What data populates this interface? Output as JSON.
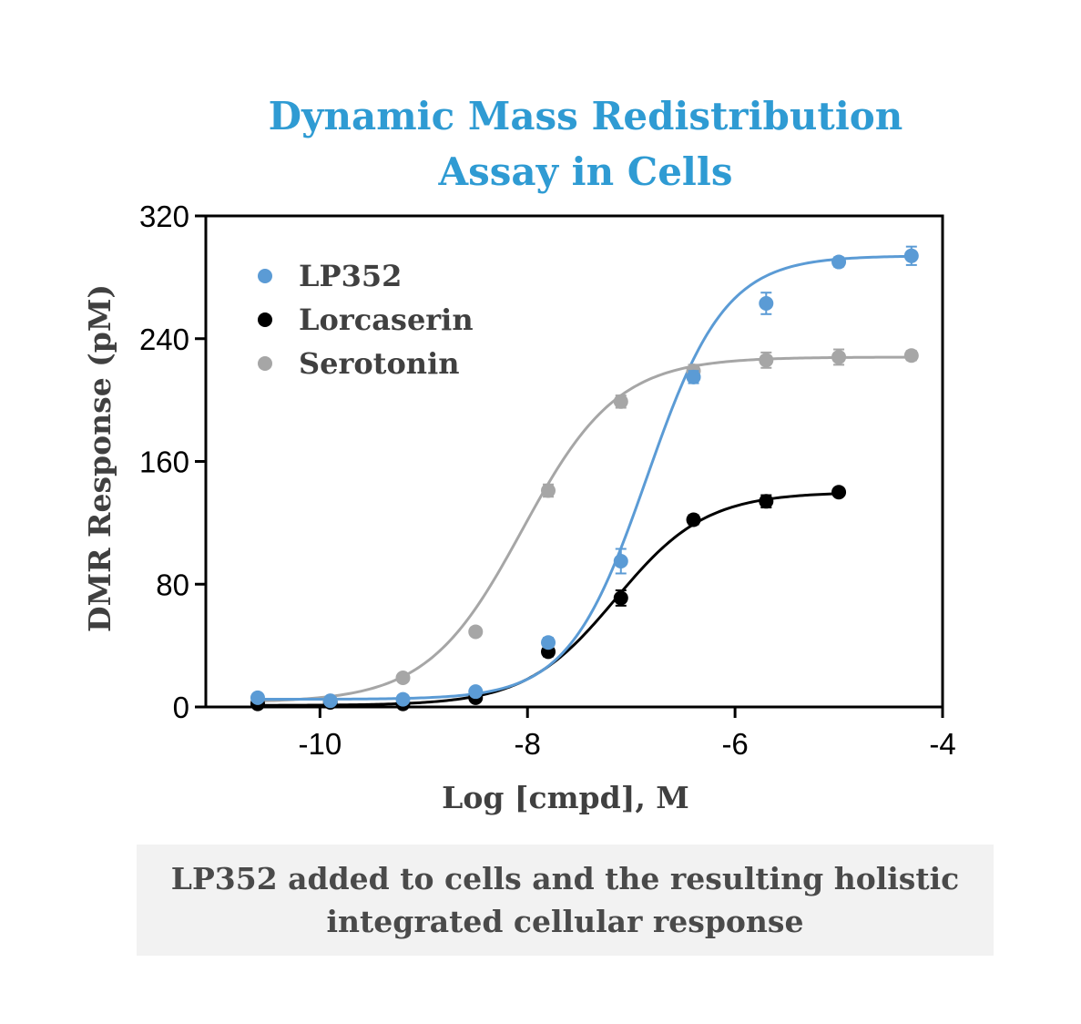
{
  "chart_data": {
    "type": "scatter",
    "title_lines": [
      "Dynamic Mass Redistribution",
      "Assay in Cells"
    ],
    "xlabel": "Log [cmpd], M",
    "ylabel": "DMR Response (pM)",
    "xlim": [
      -11.1,
      -4
    ],
    "ylim": [
      0,
      320
    ],
    "xticks": [
      -10,
      -8,
      -6,
      -4
    ],
    "xtick_labels": [
      "-10",
      "-8",
      "-6",
      "-4"
    ],
    "yticks": [
      0,
      80,
      160,
      240,
      320
    ],
    "ytick_labels": [
      "0",
      "80",
      "160",
      "240",
      "320"
    ],
    "grid": false,
    "legend_position": "top-left",
    "series": [
      {
        "name": "LP352",
        "color": "#5b9bd5",
        "x": [
          -10.6,
          -9.9,
          -9.2,
          -8.5,
          -7.8,
          -7.1,
          -6.4,
          -5.7,
          -5.0,
          -4.3
        ],
        "y": [
          6,
          4,
          5,
          10,
          42,
          95,
          215,
          263,
          290,
          294
        ],
        "err": [
          2,
          2,
          2,
          2,
          3,
          8,
          4,
          7,
          3,
          6
        ],
        "fit": {
          "bottom": 5,
          "top": 294,
          "logEC50": -6.85,
          "hill": 1.15
        }
      },
      {
        "name": "Lorcaserin",
        "color": "#000000",
        "x": [
          -10.6,
          -9.9,
          -9.2,
          -8.5,
          -7.8,
          -7.1,
          -6.4,
          -5.7,
          -5.0
        ],
        "y": [
          2,
          3,
          2,
          6,
          36,
          71,
          122,
          134,
          140
        ],
        "err": [
          1,
          1,
          1,
          2,
          3,
          5,
          3,
          4,
          2
        ],
        "fit": {
          "bottom": 1,
          "top": 140,
          "logEC50": -7.15,
          "hill": 1.0
        }
      },
      {
        "name": "Serotonin",
        "color": "#a6a6a6",
        "x": [
          -10.6,
          -9.9,
          -9.2,
          -8.5,
          -7.8,
          -7.1,
          -6.4,
          -5.7,
          -5.0,
          -4.3
        ],
        "y": [
          3,
          4,
          19,
          49,
          141,
          199,
          219,
          226,
          228,
          229
        ],
        "err": [
          1,
          1,
          2,
          2,
          4,
          4,
          4,
          5,
          5,
          3
        ],
        "fit": {
          "bottom": 3,
          "top": 228,
          "logEC50": -8.05,
          "hill": 0.95
        }
      }
    ]
  },
  "caption": {
    "lines": [
      "LP352 added to cells and the resulting holistic",
      "integrated cellular response"
    ]
  }
}
